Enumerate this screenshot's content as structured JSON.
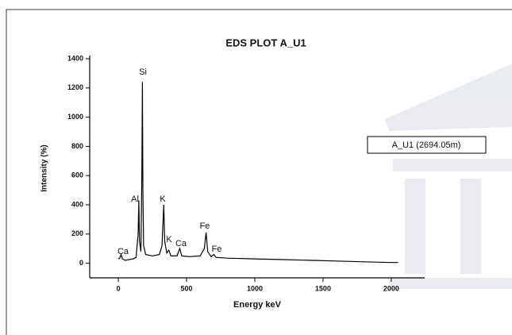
{
  "chart_data": {
    "type": "line",
    "title": "EDS PLOT A_U1",
    "x_label": "Energy keV",
    "y_label": "Intensity (%)",
    "x": [
      0,
      10,
      20,
      30,
      50,
      80,
      110,
      130,
      145,
      150,
      155,
      165,
      172,
      176,
      180,
      185,
      200,
      250,
      300,
      320,
      333,
      340,
      355,
      370,
      385,
      430,
      450,
      465,
      520,
      600,
      630,
      643,
      655,
      680,
      700,
      715,
      800,
      1000,
      1200,
      1400,
      1600,
      1800,
      2000,
      2050
    ],
    "series": [
      {
        "name": "A_U1 (2694.05m)",
        "color": "#000000",
        "values": [
          30,
          35,
          60,
          30,
          20,
          25,
          30,
          40,
          200,
          430,
          150,
          80,
          600,
          1240,
          500,
          120,
          60,
          50,
          60,
          120,
          400,
          150,
          70,
          90,
          50,
          50,
          100,
          50,
          45,
          50,
          100,
          210,
          80,
          45,
          60,
          40,
          35,
          30,
          25,
          20,
          15,
          10,
          5,
          5
        ]
      }
    ],
    "annotations": [
      "Ca",
      "Si",
      "Al",
      "K",
      "K",
      "Ca",
      "Fe",
      "Fe"
    ],
    "xlim": [
      -210,
      2245
    ],
    "ylim": [
      -100,
      1400
    ],
    "xticks": [
      0,
      500,
      1000,
      1500,
      2000
    ],
    "yticks": [
      0,
      200,
      400,
      600,
      800,
      1000,
      1200,
      1400
    ],
    "legend_position": "right"
  }
}
